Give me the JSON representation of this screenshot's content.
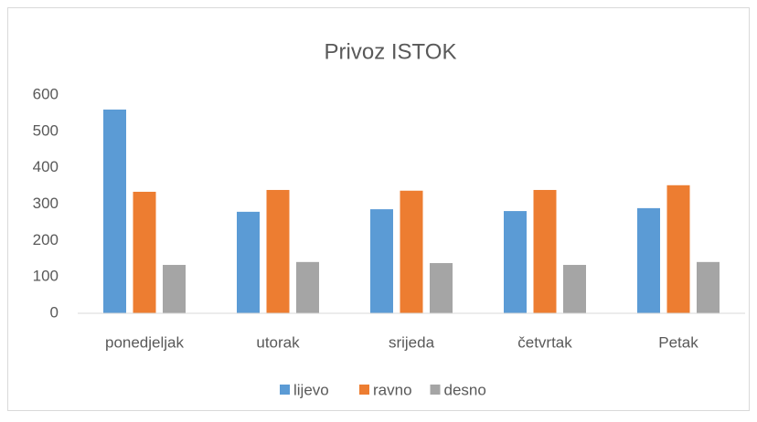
{
  "chart_data": {
    "type": "bar",
    "title": "Privoz ISTOK",
    "categories": [
      "ponedjeljak",
      "utorak",
      "srijeda",
      "četvrtak",
      "Petak"
    ],
    "series": [
      {
        "name": "lijevo",
        "color": "#5b9bd5",
        "values": [
          560,
          279,
          286,
          281,
          289
        ]
      },
      {
        "name": "ravno",
        "color": "#ed7d31",
        "values": [
          334,
          339,
          337,
          339,
          352
        ]
      },
      {
        "name": "desno",
        "color": "#a5a5a5",
        "values": [
          133,
          141,
          138,
          133,
          141
        ]
      }
    ],
    "ylim": [
      0,
      600
    ],
    "yticks": [
      0,
      100,
      200,
      300,
      400,
      500,
      600
    ],
    "grid": false,
    "legend": "bottom"
  }
}
